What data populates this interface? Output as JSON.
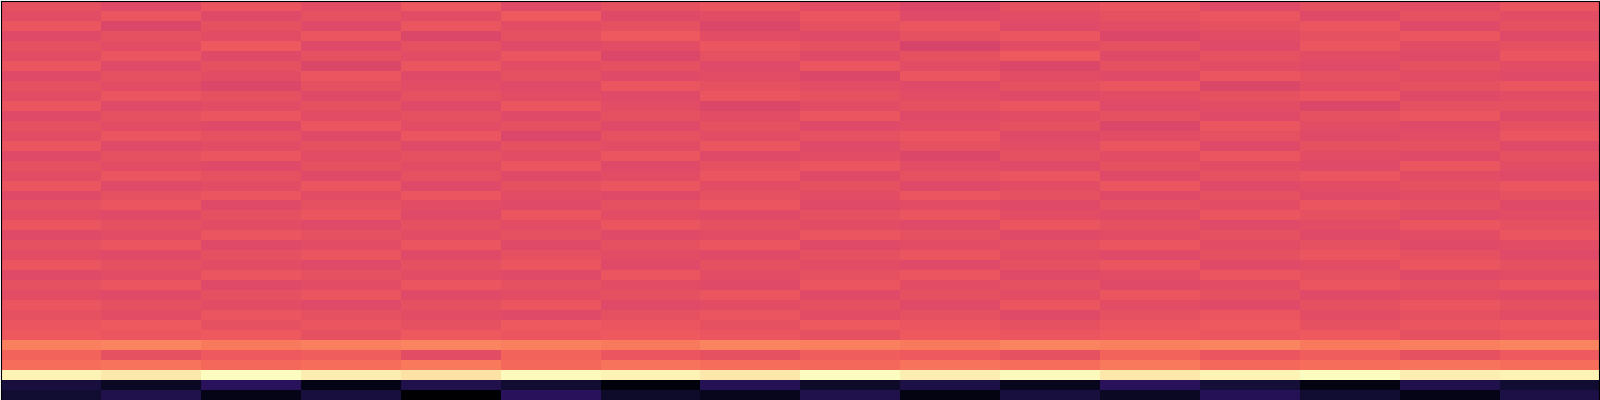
{
  "chart_data": {
    "type": "heatmap",
    "color": "magma",
    "tick_labels": false,
    "cells": [
      [
        0.62,
        0.6,
        0.63,
        0.61,
        0.64,
        0.6,
        0.62,
        0.63,
        0.61,
        0.59,
        0.62,
        0.63,
        0.6,
        0.62,
        0.61,
        0.63
      ],
      [
        0.61,
        0.63,
        0.6,
        0.62,
        0.61,
        0.64,
        0.6,
        0.61,
        0.63,
        0.6,
        0.61,
        0.62,
        0.63,
        0.6,
        0.62,
        0.61
      ],
      [
        0.63,
        0.59,
        0.62,
        0.6,
        0.63,
        0.61,
        0.62,
        0.59,
        0.62,
        0.63,
        0.6,
        0.61,
        0.62,
        0.63,
        0.6,
        0.62
      ],
      [
        0.6,
        0.62,
        0.61,
        0.63,
        0.59,
        0.62,
        0.64,
        0.61,
        0.6,
        0.62,
        0.63,
        0.59,
        0.61,
        0.62,
        0.63,
        0.6
      ],
      [
        0.62,
        0.61,
        0.64,
        0.6,
        0.62,
        0.6,
        0.61,
        0.63,
        0.62,
        0.58,
        0.61,
        0.62,
        0.6,
        0.63,
        0.61,
        0.62
      ],
      [
        0.61,
        0.63,
        0.6,
        0.62,
        0.61,
        0.63,
        0.59,
        0.62,
        0.6,
        0.62,
        0.64,
        0.6,
        0.62,
        0.61,
        0.6,
        0.63
      ],
      [
        0.63,
        0.6,
        0.62,
        0.59,
        0.63,
        0.61,
        0.62,
        0.6,
        0.63,
        0.61,
        0.59,
        0.62,
        0.61,
        0.6,
        0.62,
        0.61
      ],
      [
        0.6,
        0.62,
        0.61,
        0.63,
        0.6,
        0.62,
        0.6,
        0.61,
        0.59,
        0.63,
        0.61,
        0.6,
        0.63,
        0.62,
        0.61,
        0.6
      ],
      [
        0.62,
        0.61,
        0.59,
        0.62,
        0.61,
        0.6,
        0.63,
        0.62,
        0.61,
        0.6,
        0.62,
        0.63,
        0.59,
        0.61,
        0.62,
        0.63
      ],
      [
        0.61,
        0.63,
        0.62,
        0.6,
        0.62,
        0.61,
        0.6,
        0.63,
        0.62,
        0.61,
        0.6,
        0.61,
        0.62,
        0.63,
        0.6,
        0.61
      ],
      [
        0.63,
        0.6,
        0.61,
        0.62,
        0.6,
        0.63,
        0.61,
        0.59,
        0.61,
        0.62,
        0.63,
        0.6,
        0.61,
        0.59,
        0.62,
        0.62
      ],
      [
        0.6,
        0.62,
        0.63,
        0.61,
        0.62,
        0.6,
        0.62,
        0.61,
        0.63,
        0.6,
        0.61,
        0.62,
        0.6,
        0.62,
        0.63,
        0.6
      ],
      [
        0.62,
        0.61,
        0.6,
        0.63,
        0.61,
        0.62,
        0.6,
        0.62,
        0.6,
        0.61,
        0.62,
        0.59,
        0.63,
        0.61,
        0.6,
        0.62
      ],
      [
        0.61,
        0.63,
        0.62,
        0.6,
        0.63,
        0.59,
        0.62,
        0.61,
        0.62,
        0.63,
        0.6,
        0.61,
        0.62,
        0.6,
        0.61,
        0.63
      ],
      [
        0.63,
        0.6,
        0.61,
        0.62,
        0.6,
        0.62,
        0.61,
        0.63,
        0.6,
        0.62,
        0.61,
        0.63,
        0.6,
        0.62,
        0.62,
        0.6
      ],
      [
        0.6,
        0.62,
        0.63,
        0.61,
        0.62,
        0.61,
        0.63,
        0.6,
        0.61,
        0.59,
        0.62,
        0.61,
        0.63,
        0.61,
        0.6,
        0.62
      ],
      [
        0.62,
        0.61,
        0.6,
        0.62,
        0.61,
        0.63,
        0.6,
        0.62,
        0.63,
        0.61,
        0.6,
        0.62,
        0.61,
        0.6,
        0.63,
        0.61
      ],
      [
        0.61,
        0.63,
        0.62,
        0.6,
        0.62,
        0.6,
        0.61,
        0.63,
        0.6,
        0.62,
        0.63,
        0.6,
        0.62,
        0.63,
        0.61,
        0.6
      ],
      [
        0.63,
        0.6,
        0.61,
        0.63,
        0.6,
        0.62,
        0.63,
        0.61,
        0.62,
        0.6,
        0.61,
        0.63,
        0.6,
        0.61,
        0.62,
        0.63
      ],
      [
        0.6,
        0.62,
        0.63,
        0.61,
        0.63,
        0.61,
        0.6,
        0.62,
        0.61,
        0.63,
        0.62,
        0.6,
        0.62,
        0.6,
        0.61,
        0.62
      ],
      [
        0.62,
        0.63,
        0.6,
        0.62,
        0.61,
        0.6,
        0.62,
        0.63,
        0.6,
        0.61,
        0.6,
        0.62,
        0.61,
        0.63,
        0.62,
        0.6
      ],
      [
        0.61,
        0.6,
        0.62,
        0.63,
        0.6,
        0.63,
        0.61,
        0.6,
        0.62,
        0.63,
        0.61,
        0.6,
        0.63,
        0.62,
        0.6,
        0.61
      ],
      [
        0.63,
        0.62,
        0.61,
        0.6,
        0.62,
        0.61,
        0.63,
        0.62,
        0.61,
        0.6,
        0.63,
        0.62,
        0.6,
        0.61,
        0.63,
        0.62
      ],
      [
        0.6,
        0.61,
        0.63,
        0.62,
        0.61,
        0.62,
        0.6,
        0.61,
        0.63,
        0.62,
        0.6,
        0.61,
        0.62,
        0.6,
        0.61,
        0.63
      ],
      [
        0.62,
        0.63,
        0.6,
        0.61,
        0.63,
        0.6,
        0.62,
        0.63,
        0.6,
        0.61,
        0.62,
        0.63,
        0.61,
        0.62,
        0.6,
        0.61
      ],
      [
        0.61,
        0.6,
        0.62,
        0.63,
        0.6,
        0.62,
        0.61,
        0.6,
        0.62,
        0.63,
        0.61,
        0.6,
        0.62,
        0.63,
        0.62,
        0.6
      ],
      [
        0.63,
        0.62,
        0.61,
        0.6,
        0.62,
        0.63,
        0.6,
        0.62,
        0.61,
        0.6,
        0.62,
        0.63,
        0.6,
        0.61,
        0.63,
        0.62
      ],
      [
        0.6,
        0.61,
        0.63,
        0.62,
        0.61,
        0.6,
        0.63,
        0.61,
        0.62,
        0.63,
        0.6,
        0.61,
        0.63,
        0.62,
        0.6,
        0.61
      ],
      [
        0.62,
        0.63,
        0.6,
        0.61,
        0.63,
        0.62,
        0.61,
        0.6,
        0.63,
        0.61,
        0.62,
        0.6,
        0.61,
        0.63,
        0.62,
        0.63
      ],
      [
        0.61,
        0.6,
        0.62,
        0.63,
        0.6,
        0.61,
        0.62,
        0.63,
        0.6,
        0.62,
        0.61,
        0.63,
        0.62,
        0.6,
        0.61,
        0.6
      ],
      [
        0.63,
        0.62,
        0.61,
        0.6,
        0.62,
        0.63,
        0.6,
        0.61,
        0.62,
        0.6,
        0.63,
        0.61,
        0.6,
        0.62,
        0.63,
        0.62
      ],
      [
        0.62,
        0.61,
        0.63,
        0.62,
        0.61,
        0.6,
        0.62,
        0.63,
        0.61,
        0.62,
        0.6,
        0.62,
        0.63,
        0.61,
        0.62,
        0.61
      ],
      [
        0.63,
        0.64,
        0.62,
        0.63,
        0.62,
        0.64,
        0.63,
        0.62,
        0.64,
        0.63,
        0.62,
        0.63,
        0.64,
        0.62,
        0.63,
        0.64
      ],
      [
        0.64,
        0.63,
        0.64,
        0.62,
        0.64,
        0.63,
        0.64,
        0.63,
        0.62,
        0.64,
        0.63,
        0.64,
        0.63,
        0.64,
        0.62,
        0.63
      ],
      [
        0.71,
        0.72,
        0.7,
        0.71,
        0.72,
        0.71,
        0.7,
        0.72,
        0.71,
        0.7,
        0.72,
        0.71,
        0.72,
        0.7,
        0.71,
        0.72
      ],
      [
        0.66,
        0.62,
        0.64,
        0.65,
        0.61,
        0.66,
        0.63,
        0.62,
        0.65,
        0.64,
        0.62,
        0.66,
        0.63,
        0.65,
        0.62,
        0.64
      ],
      [
        0.68,
        0.69,
        0.67,
        0.68,
        0.7,
        0.67,
        0.69,
        0.68,
        0.67,
        0.69,
        0.68,
        0.7,
        0.67,
        0.68,
        0.69,
        0.68
      ],
      [
        0.92,
        0.9,
        0.94,
        0.91,
        0.89,
        0.93,
        0.92,
        0.9,
        0.94,
        0.91,
        0.93,
        0.9,
        0.92,
        0.94,
        0.91,
        0.92
      ],
      [
        0.18,
        0.14,
        0.22,
        0.12,
        0.2,
        0.16,
        0.1,
        0.21,
        0.15,
        0.19,
        0.13,
        0.22,
        0.17,
        0.11,
        0.2,
        0.16
      ],
      [
        0.16,
        0.2,
        0.12,
        0.18,
        0.08,
        0.22,
        0.15,
        0.13,
        0.2,
        0.11,
        0.18,
        0.14,
        0.21,
        0.16,
        0.12,
        0.19
      ]
    ]
  }
}
